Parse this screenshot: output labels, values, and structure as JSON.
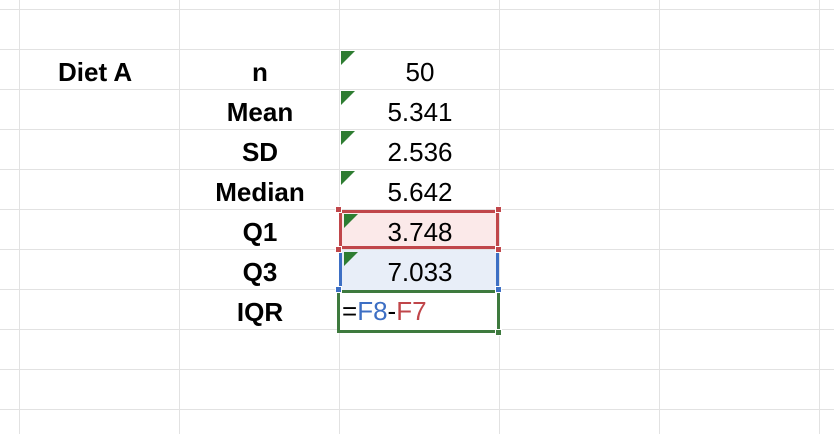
{
  "spreadsheet": {
    "group_label": "Diet A",
    "rows": [
      {
        "label": "n",
        "value": "50"
      },
      {
        "label": "Mean",
        "value": "5.341"
      },
      {
        "label": "SD",
        "value": "2.536"
      },
      {
        "label": "Median",
        "value": "5.642"
      },
      {
        "label": "Q1",
        "value": "3.748"
      },
      {
        "label": "Q3",
        "value": "7.033"
      },
      {
        "label": "IQR",
        "value": ""
      }
    ],
    "formula_edit": {
      "equals": "=",
      "ref1": "F8",
      "operator": "-",
      "ref2": "F7"
    }
  },
  "colors": {
    "grid": "#e2e2e2",
    "q1_ref": "#c0464a",
    "q3_ref": "#3d6fc4",
    "active_cell": "#3e7a3e",
    "number_as_text_flag": "#2e7d32"
  }
}
